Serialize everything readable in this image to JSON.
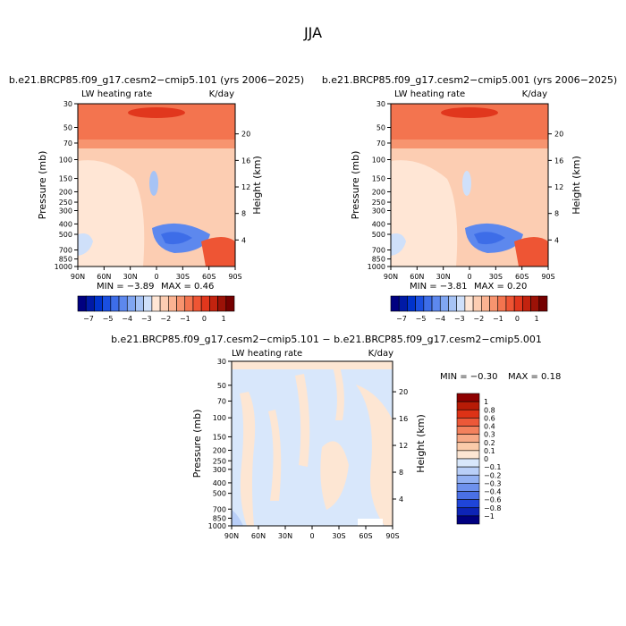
{
  "season": "JJA",
  "colors": {
    "full_scale": [
      "#000080",
      "#001aa6",
      "#0033cc",
      "#1a4fe0",
      "#3d6de8",
      "#5d88ee",
      "#80a6f2",
      "#a6c3f5",
      "#cfe0fa",
      "#ffe6d5",
      "#fccdb2",
      "#fbb392",
      "#f7946f",
      "#f3744f",
      "#ee5534",
      "#e1371d",
      "#c3230f",
      "#9c1207",
      "#750000"
    ],
    "diff_scale": [
      "#000080",
      "#0d24b6",
      "#1f45d9",
      "#4a70e6",
      "#6e91ed",
      "#93b1f3",
      "#b9cff8",
      "#d8e7fb",
      "#fde6d3",
      "#fbcbaa",
      "#f7a986",
      "#f3815d",
      "#ec5838",
      "#dd3216",
      "#b71b06",
      "#8e0000"
    ]
  },
  "chart_data": [
    {
      "type": "heatmap",
      "title": "b.e21.BRCP85.f09_g17.cesm2−cmip5.101 (yrs 2006−2025)",
      "left_label": "LW heating rate",
      "right_label": "K/day",
      "xlabel": "",
      "ylabel": "Pressure (mb)",
      "y2label": "Height (km)",
      "x_ticks": [
        "90N",
        "60N",
        "30N",
        "0",
        "30S",
        "60S",
        "90S"
      ],
      "y_ticks": [
        "30",
        "50",
        "70",
        "100",
        "150",
        "200",
        "250",
        "300",
        "400",
        "500",
        "700",
        "850",
        "1000"
      ],
      "y2_ticks": [
        "20",
        "16",
        "12",
        "8",
        "4"
      ],
      "ylim": [
        1000,
        30
      ],
      "min_label": "MIN = −3.89",
      "max_label": "MAX = 0.46",
      "min": -3.89,
      "max": 0.46
    },
    {
      "type": "heatmap",
      "title": "b.e21.BRCP85.f09_g17.cesm2−cmip5.001 (yrs 2006−2025)",
      "left_label": "LW heating rate",
      "right_label": "K/day",
      "xlabel": "",
      "ylabel": "Pressure (mb)",
      "y2label": "Height (km)",
      "x_ticks": [
        "90N",
        "60N",
        "30N",
        "0",
        "30S",
        "60S",
        "90S"
      ],
      "y_ticks": [
        "30",
        "50",
        "70",
        "100",
        "150",
        "200",
        "250",
        "300",
        "400",
        "500",
        "700",
        "850",
        "1000"
      ],
      "y2_ticks": [
        "20",
        "16",
        "12",
        "8",
        "4"
      ],
      "ylim": [
        1000,
        30
      ],
      "min_label": "MIN = −3.81",
      "max_label": "MAX = 0.20",
      "min": -3.81,
      "max": 0.2
    },
    {
      "type": "heatmap",
      "title": "b.e21.BRCP85.f09_g17.cesm2−cmip5.101 − b.e21.BRCP85.f09_g17.cesm2−cmip5.001",
      "left_label": "LW heating rate",
      "right_label": "K/day",
      "xlabel": "",
      "ylabel": "Pressure (mb)",
      "y2label": "Height (km)",
      "x_ticks": [
        "90N",
        "60N",
        "30N",
        "0",
        "30S",
        "60S",
        "90S"
      ],
      "y_ticks": [
        "30",
        "50",
        "70",
        "100",
        "150",
        "200",
        "250",
        "300",
        "400",
        "500",
        "700",
        "850",
        "1000"
      ],
      "y2_ticks": [
        "20",
        "16",
        "12",
        "8",
        "4"
      ],
      "ylim": [
        1000,
        30
      ],
      "min_label": "MIN = −0.30",
      "max_label": "MAX = 0.18",
      "min": -0.3,
      "max": 0.18
    }
  ],
  "colorbar_top": {
    "labels": [
      "−7",
      "−5",
      "−4",
      "−3",
      "−2",
      "−1",
      "0",
      "1"
    ]
  },
  "colorbar_diff": {
    "labels": [
      "1",
      "0.8",
      "0.6",
      "0.4",
      "0.3",
      "0.2",
      "0.1",
      "0",
      "−0.1",
      "−0.2",
      "−0.3",
      "−0.4",
      "−0.6",
      "−0.8",
      "−1"
    ]
  }
}
